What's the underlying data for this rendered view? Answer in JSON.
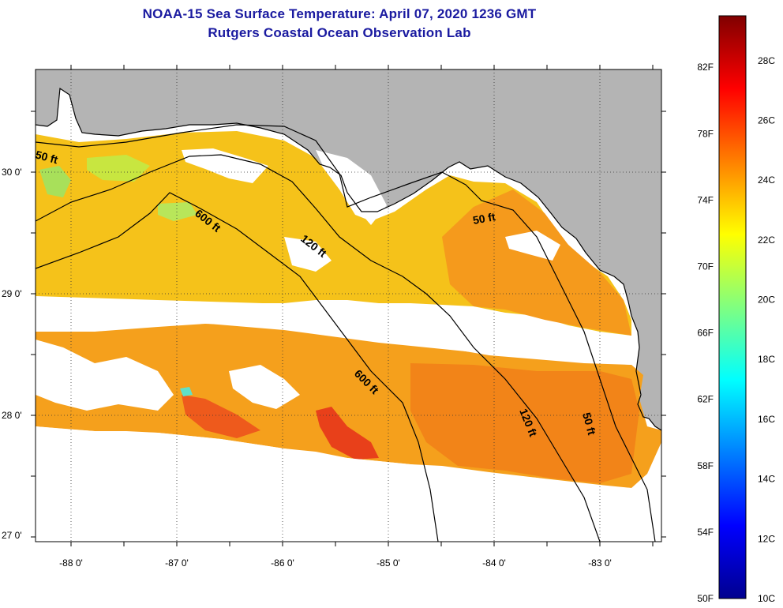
{
  "header": {
    "title": "NOAA-15 Sea Surface Temperature:  April 07, 2020 1236 GMT",
    "subtitle": "Rutgers Coastal Ocean Observation Lab"
  },
  "axes": {
    "longitude_ticks": [
      "-88 0'",
      "-87 0'",
      "-86 0'",
      "-85 0'",
      "-84 0'",
      "-83 0'"
    ],
    "latitude_ticks": [
      "30 0'",
      "29 0'",
      "28 0'",
      "27 0'"
    ]
  },
  "contours": [
    {
      "label": "50 ft",
      "depth_ft": 50
    },
    {
      "label": "120 ft",
      "depth_ft": 120
    },
    {
      "label": "600 ft",
      "depth_ft": 600
    }
  ],
  "colorbar": {
    "fahrenheit_labels": [
      "82F",
      "78F",
      "74F",
      "70F",
      "66F",
      "62F",
      "58F",
      "54F",
      "50F"
    ],
    "celsius_labels": [
      "28C",
      "26C",
      "24C",
      "22C",
      "20C",
      "18C",
      "16C",
      "14C",
      "12C",
      "10C"
    ],
    "range_c": [
      10,
      29.5
    ],
    "colors": [
      "#00008f",
      "#0000ff",
      "#0080ff",
      "#00ffff",
      "#80ff80",
      "#ffff00",
      "#ff8000",
      "#ff0000",
      "#800000"
    ]
  },
  "map_colors": {
    "land": "#b4b4b4",
    "no_data": "#ffffff",
    "sst_dominant": "#f7a21c"
  }
}
